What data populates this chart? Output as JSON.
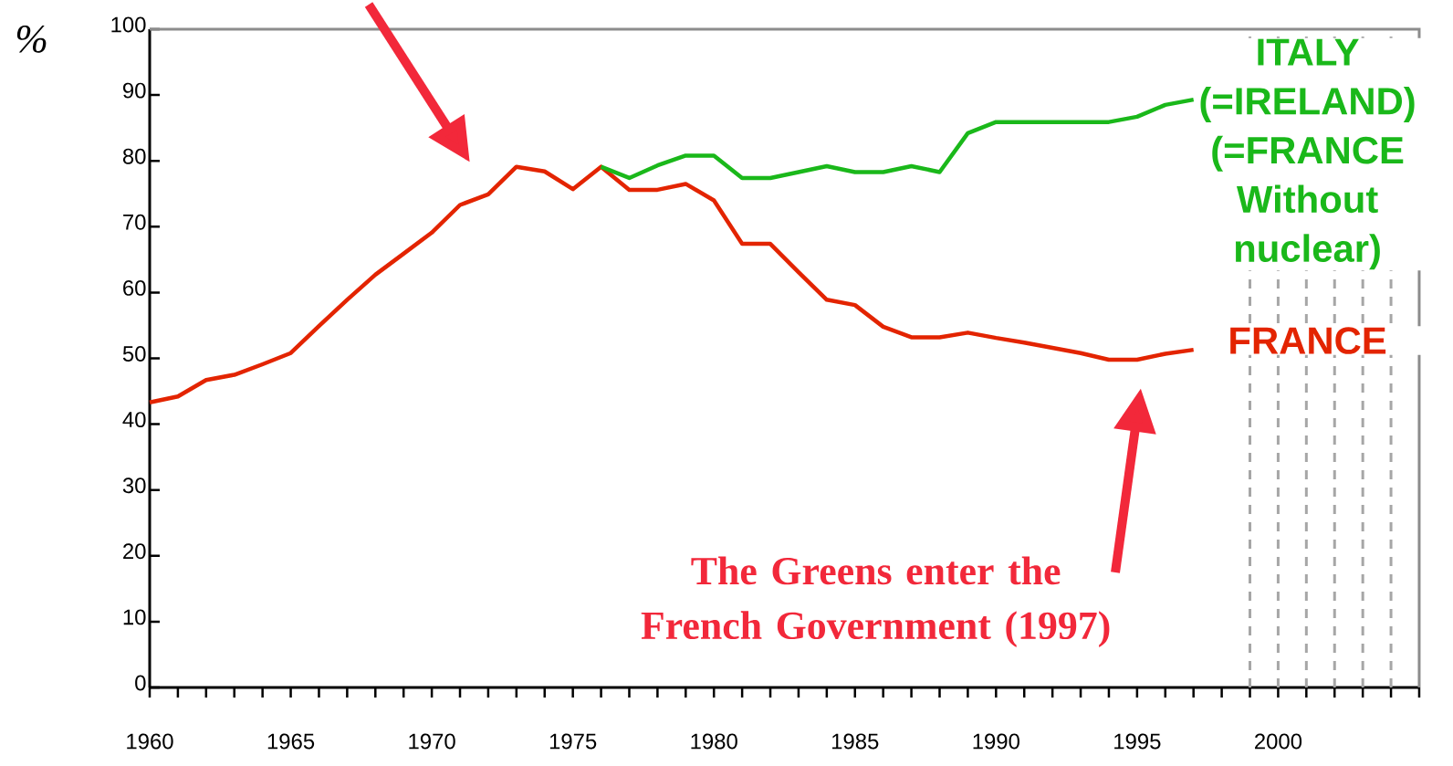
{
  "chart_data": {
    "type": "line",
    "ylabel": "%",
    "xlim": [
      1960,
      2005
    ],
    "ylim": [
      0,
      100
    ],
    "xticks": [
      1960,
      {
        "value": 1961,
        "label": null
      },
      {
        "value": 1962,
        "label": null
      },
      {
        "value": 1963,
        "label": null
      },
      {
        "value": 1964,
        "label": null
      },
      1965,
      {
        "value": 1966,
        "label": null
      },
      {
        "value": 1967,
        "label": null
      },
      {
        "value": 1968,
        "label": null
      },
      {
        "value": 1969,
        "label": null
      },
      1970,
      {
        "value": 1971,
        "label": null
      },
      {
        "value": 1972,
        "label": null
      },
      {
        "value": 1973,
        "label": null
      },
      {
        "value": 1974,
        "label": null
      },
      1975,
      {
        "value": 1976,
        "label": null
      },
      {
        "value": 1977,
        "label": null
      },
      {
        "value": 1978,
        "label": null
      },
      {
        "value": 1979,
        "label": null
      },
      1980,
      {
        "value": 1981,
        "label": null
      },
      {
        "value": 1982,
        "label": null
      },
      {
        "value": 1983,
        "label": null
      },
      {
        "value": 1984,
        "label": null
      },
      1985,
      {
        "value": 1986,
        "label": null
      },
      {
        "value": 1987,
        "label": null
      },
      {
        "value": 1988,
        "label": null
      },
      {
        "value": 1989,
        "label": null
      },
      1990,
      {
        "value": 1991,
        "label": null
      },
      {
        "value": 1992,
        "label": null
      },
      {
        "value": 1993,
        "label": null
      },
      {
        "value": 1994,
        "label": null
      },
      1995,
      {
        "value": 1996,
        "label": null
      },
      {
        "value": 1997,
        "label": null
      },
      {
        "value": 1998,
        "label": null
      },
      {
        "value": 1999,
        "label": null
      },
      2000,
      {
        "value": 2001,
        "label": null
      },
      {
        "value": 2002,
        "label": null
      },
      {
        "value": 2003,
        "label": null
      },
      {
        "value": 2004,
        "label": null
      },
      {
        "value": 2005,
        "label": null
      }
    ],
    "yticks": [
      0,
      10,
      20,
      30,
      40,
      50,
      60,
      70,
      80,
      90,
      100
    ],
    "series": [
      {
        "name": "FRANCE",
        "color": "#e32400",
        "x": [
          1960,
          1961,
          1962,
          1963,
          1964,
          1965,
          1966,
          1967,
          1968,
          1969,
          1970,
          1971,
          1972,
          1973,
          1974,
          1975,
          1976,
          1977,
          1978,
          1979,
          1980,
          1981,
          1982,
          1983,
          1984,
          1985,
          1986,
          1987,
          1988,
          1989,
          1990,
          1991,
          1992,
          1993,
          1994,
          1995,
          1996,
          1997
        ],
        "values": [
          43.3,
          44.2,
          46.7,
          47.5,
          49.1,
          50.8,
          54.9,
          58.9,
          62.7,
          65.9,
          69.1,
          73.3,
          74.9,
          79.1,
          78.4,
          75.7,
          79.1,
          75.6,
          75.6,
          76.5,
          74.0,
          67.4,
          67.4,
          63.1,
          58.9,
          58.1,
          54.8,
          53.2,
          53.2,
          53.9,
          53.1,
          52.4,
          51.6,
          50.8,
          49.8,
          49.8,
          50.7,
          51.3
        ]
      },
      {
        "name": "ITALY (=IRELAND) (=FRANCE Without nuclear)",
        "color": "#1ab81a",
        "x": [
          1976,
          1977,
          1978,
          1979,
          1980,
          1981,
          1982,
          1983,
          1984,
          1985,
          1986,
          1987,
          1988,
          1989,
          1990,
          1991,
          1992,
          1993,
          1994,
          1995,
          1996,
          1997
        ],
        "values": [
          79.1,
          77.4,
          79.3,
          80.8,
          80.8,
          77.4,
          77.4,
          78.3,
          79.2,
          78.3,
          78.3,
          79.2,
          78.3,
          84.2,
          85.9,
          85.9,
          85.9,
          85.9,
          85.9,
          86.7,
          88.5,
          89.3
        ]
      }
    ],
    "ref_lines": [
      {
        "axis": "x",
        "value": 1999,
        "color": "#a6a6a6",
        "line_style": "dashed"
      },
      {
        "axis": "x",
        "value": 2000,
        "color": "#a6a6a6",
        "line_style": "dashed"
      },
      {
        "axis": "x",
        "value": 2001,
        "color": "#a6a6a6",
        "line_style": "dashed"
      },
      {
        "axis": "x",
        "value": 2002,
        "color": "#a6a6a6",
        "line_style": "dashed"
      },
      {
        "axis": "x",
        "value": 2003,
        "color": "#a6a6a6",
        "line_style": "dashed"
      },
      {
        "axis": "x",
        "value": 2004,
        "color": "#a6a6a6",
        "line_style": "dashed"
      }
    ],
    "annotations": [
      "The Greens enter the French Government (1997)"
    ]
  }
}
